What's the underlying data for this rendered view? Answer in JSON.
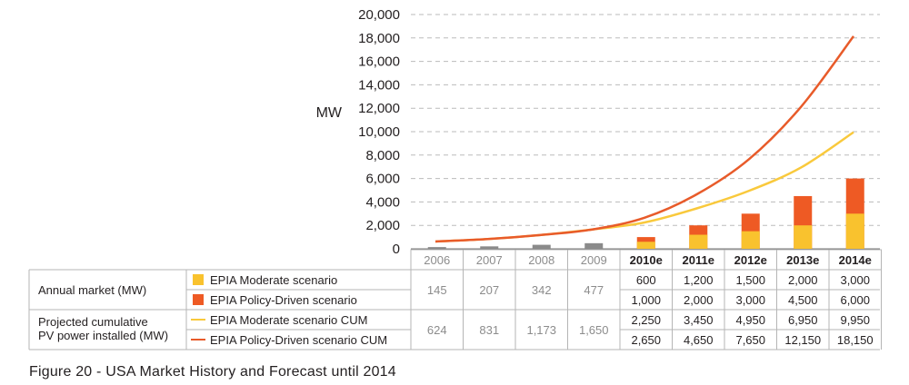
{
  "chart_data": {
    "type": "bar",
    "ylabel": "MW",
    "ylim": [
      0,
      20000
    ],
    "y_ticks": [
      "0",
      "2,000",
      "4,000",
      "6,000",
      "8,000",
      "10,000",
      "12,000",
      "14,000",
      "16,000",
      "18,000",
      "20,000"
    ],
    "grid": true,
    "categories": [
      "2006",
      "2007",
      "2008",
      "2009",
      "2010e",
      "2011e",
      "2012e",
      "2013e",
      "2014e"
    ],
    "historical_bars": [
      145,
      207,
      342,
      477
    ],
    "series": [
      {
        "name": "EPIA Moderate scenario",
        "type": "bar",
        "values": [
          null,
          null,
          null,
          null,
          600,
          1200,
          1500,
          2000,
          3000
        ]
      },
      {
        "name": "EPIA Policy-Driven scenario",
        "type": "bar",
        "values": [
          null,
          null,
          null,
          null,
          1000,
          2000,
          3000,
          4500,
          6000
        ]
      },
      {
        "name": "EPIA Moderate scenario CUM",
        "type": "line",
        "values": [
          624,
          831,
          1173,
          1650,
          2250,
          3450,
          4950,
          6950,
          9950
        ]
      },
      {
        "name": "EPIA Policy-Driven scenario CUM",
        "type": "line",
        "values": [
          624,
          831,
          1173,
          1650,
          2650,
          4650,
          7650,
          12150,
          18150
        ]
      }
    ],
    "colors": {
      "moderate": "#f9c22e",
      "policy": "#ee5a24",
      "moderate_line": "#f9c93c",
      "policy_line": "#e85b2a",
      "historical": "#8a8a8a",
      "grid": "#bbbbbb"
    },
    "table": {
      "row_group_1_label": "Annual market (MW)",
      "row_group_2_label_1": "Projected cumulative",
      "row_group_2_label_2": "PV power installed (MW)",
      "legend_1": "EPIA Moderate scenario",
      "legend_2": "EPIA Policy-Driven scenario",
      "legend_3": "EPIA Moderate scenario CUM",
      "legend_4": "EPIA Policy-Driven scenario CUM",
      "annual_hist": [
        "145",
        "207",
        "342",
        "477"
      ],
      "cum_hist": [
        "624",
        "831",
        "1,173",
        "1,650"
      ],
      "moderate_annual": [
        "600",
        "1,200",
        "1,500",
        "2,000",
        "3,000"
      ],
      "policy_annual": [
        "1,000",
        "2,000",
        "3,000",
        "4,500",
        "6,000"
      ],
      "moderate_cum": [
        "2,250",
        "3,450",
        "4,950",
        "6,950",
        "9,950"
      ],
      "policy_cum": [
        "2,650",
        "4,650",
        "7,650",
        "12,150",
        "18,150"
      ]
    }
  },
  "caption": "Figure 20 - USA Market History and Forecast until 2014"
}
